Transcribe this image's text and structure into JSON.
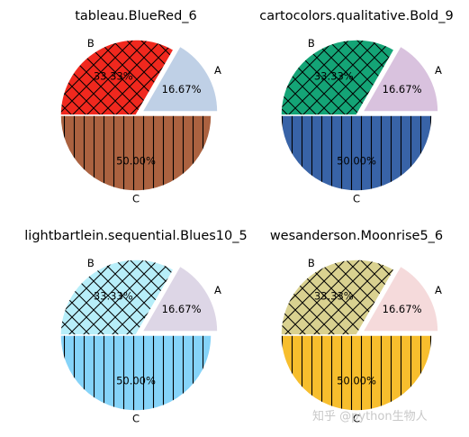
{
  "chart_data": [
    {
      "type": "pie",
      "title": "tableau.BlueRed_6",
      "labels": [
        "A",
        "B",
        "C"
      ],
      "values": [
        16.67,
        33.33,
        50.0
      ],
      "pct_labels": [
        "16.67%",
        "33.33%",
        "50.00%"
      ],
      "explode": [
        0.1,
        0,
        0
      ],
      "hatches": [
        "none",
        "crosshatch",
        "vertical"
      ],
      "colors": [
        "#bfd0e6",
        "#f0281e",
        "#ab6240"
      ]
    },
    {
      "type": "pie",
      "title": "cartocolors.qualitative.Bold_9",
      "labels": [
        "A",
        "B",
        "C"
      ],
      "values": [
        16.67,
        33.33,
        50.0
      ],
      "pct_labels": [
        "16.67%",
        "33.33%",
        "50.00%"
      ],
      "explode": [
        0.1,
        0,
        0
      ],
      "hatches": [
        "none",
        "crosshatch",
        "vertical"
      ],
      "colors": [
        "#d9c2de",
        "#14a476",
        "#3863a7"
      ]
    },
    {
      "type": "pie",
      "title": "lightbartlein.sequential.Blues10_5",
      "labels": [
        "A",
        "B",
        "C"
      ],
      "values": [
        16.67,
        33.33,
        50.0
      ],
      "pct_labels": [
        "16.67%",
        "33.33%",
        "50.00%"
      ],
      "explode": [
        0.1,
        0,
        0
      ],
      "hatches": [
        "none",
        "crosshatch",
        "vertical"
      ],
      "colors": [
        "#ddd6e6",
        "#b7eef9",
        "#85d3f8"
      ]
    },
    {
      "type": "pie",
      "title": "wesanderson.Moonrise5_6",
      "labels": [
        "A",
        "B",
        "C"
      ],
      "values": [
        16.67,
        33.33,
        50.0
      ],
      "pct_labels": [
        "16.67%",
        "33.33%",
        "50.00%"
      ],
      "explode": [
        0.1,
        0,
        0
      ],
      "hatches": [
        "none",
        "crosshatch",
        "vertical"
      ],
      "colors": [
        "#f5dadb",
        "#d9d190",
        "#f7be2d"
      ]
    }
  ],
  "watermark": "知乎 @python生物人"
}
